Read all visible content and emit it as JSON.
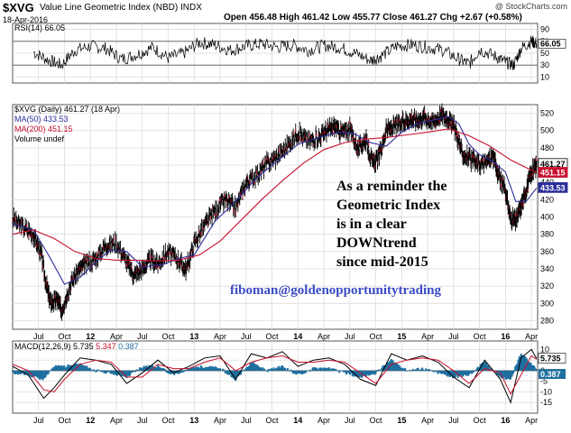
{
  "header": {
    "symbol": "$XVG",
    "name": "Value Line Geometric Index (NBD)",
    "exchange": "INDX",
    "date": "18-Apr-2016",
    "open_label": "Open",
    "open": "456.48",
    "high_label": "High",
    "high": "461.42",
    "low_label": "Low",
    "low": "455.77",
    "close_label": "Close",
    "close": "461.27",
    "chg_label": "Chg",
    "chg": "+2.67 (+0.58%)",
    "watermark": "@ StockCharts.com"
  },
  "colors": {
    "price": "#000000",
    "ma50": "#2b2d9a",
    "ma200": "#c8102e",
    "macd": "#000000",
    "signal": "#c8102e",
    "histogram": "#1f6f9e",
    "email": "#3a4bc6"
  },
  "annotation": {
    "lines": [
      "As a reminder the",
      "Geometric Index",
      "is in a clear",
      "DOWNtrend",
      "since mid-2015"
    ],
    "email": "fiboman@goldenopportunitytrading"
  },
  "chart_data": [
    {
      "type": "line",
      "panel": "rsi",
      "legend": "RSI(14) 66.05",
      "ylim": [
        0,
        100
      ],
      "yticks": [
        10,
        30,
        50,
        70,
        90
      ],
      "reference_lines": [
        30,
        70
      ],
      "last_value_label": "66.05",
      "x": [
        2011.45,
        2011.6,
        2011.72,
        2011.85,
        2012.0,
        2012.15,
        2012.3,
        2012.45,
        2012.6,
        2012.75,
        2012.9,
        2013.05,
        2013.2,
        2013.35,
        2013.5,
        2013.65,
        2013.8,
        2013.95,
        2014.1,
        2014.25,
        2014.4,
        2014.55,
        2014.7,
        2014.8,
        2014.95,
        2015.1,
        2015.25,
        2015.4,
        2015.55,
        2015.65,
        2015.75,
        2015.9,
        2016.0,
        2016.08,
        2016.15,
        2016.25,
        2016.3
      ],
      "values": [
        52,
        38,
        30,
        55,
        62,
        58,
        40,
        48,
        60,
        42,
        50,
        68,
        64,
        55,
        62,
        66,
        60,
        64,
        55,
        63,
        60,
        50,
        38,
        45,
        62,
        64,
        60,
        55,
        40,
        32,
        56,
        45,
        35,
        30,
        58,
        70,
        66
      ]
    },
    {
      "type": "line",
      "panel": "price",
      "legend": [
        "$XVG (Daily) 461.27 (18 Apr)",
        "MA(50) 433.53",
        "MA(200) 451.15",
        "Volume undef"
      ],
      "ylim": [
        270,
        530
      ],
      "yticks": [
        280,
        300,
        320,
        340,
        360,
        380,
        400,
        420,
        440,
        460,
        480,
        500,
        520
      ],
      "last_value_labels": [
        "461.27",
        "451.15",
        "433.53"
      ],
      "series": [
        {
          "name": "$XVG",
          "x": [
            2011.25,
            2011.35,
            2011.45,
            2011.52,
            2011.58,
            2011.62,
            2011.68,
            2011.72,
            2011.8,
            2011.88,
            2011.95,
            2012.05,
            2012.15,
            2012.25,
            2012.35,
            2012.42,
            2012.5,
            2012.58,
            2012.65,
            2012.75,
            2012.85,
            2012.92,
            2013.0,
            2013.1,
            2013.2,
            2013.3,
            2013.4,
            2013.5,
            2013.6,
            2013.7,
            2013.8,
            2013.9,
            2014.0,
            2014.1,
            2014.2,
            2014.28,
            2014.35,
            2014.42,
            2014.5,
            2014.58,
            2014.65,
            2014.72,
            2014.78,
            2014.85,
            2014.92,
            2015.0,
            2015.08,
            2015.15,
            2015.22,
            2015.3,
            2015.38,
            2015.45,
            2015.52,
            2015.58,
            2015.65,
            2015.72,
            2015.8,
            2015.88,
            2015.93,
            2016.0,
            2016.05,
            2016.1,
            2016.15,
            2016.2,
            2016.25,
            2016.3
          ],
          "values": [
            398,
            388,
            380,
            360,
            318,
            300,
            305,
            292,
            320,
            338,
            345,
            352,
            368,
            370,
            348,
            332,
            340,
            350,
            346,
            360,
            350,
            338,
            370,
            390,
            408,
            420,
            410,
            440,
            448,
            462,
            470,
            482,
            498,
            488,
            492,
            500,
            504,
            498,
            502,
            478,
            490,
            462,
            470,
            500,
            504,
            508,
            514,
            512,
            516,
            510,
            518,
            514,
            500,
            474,
            468,
            462,
            462,
            470,
            450,
            430,
            398,
            396,
            412,
            432,
            450,
            461.27
          ]
        },
        {
          "name": "MA(50)",
          "x": [
            2011.25,
            2011.45,
            2011.6,
            2011.75,
            2011.9,
            2012.05,
            2012.2,
            2012.35,
            2012.5,
            2012.7,
            2012.85,
            2013.0,
            2013.2,
            2013.4,
            2013.6,
            2013.8,
            2014.0,
            2014.2,
            2014.4,
            2014.55,
            2014.7,
            2014.85,
            2015.0,
            2015.15,
            2015.3,
            2015.45,
            2015.55,
            2015.65,
            2015.75,
            2015.88,
            2016.0,
            2016.1,
            2016.2,
            2016.3
          ],
          "values": [
            392,
            385,
            355,
            322,
            330,
            348,
            362,
            360,
            342,
            345,
            352,
            356,
            395,
            418,
            445,
            465,
            484,
            492,
            498,
            496,
            486,
            482,
            498,
            508,
            512,
            516,
            508,
            484,
            472,
            464,
            452,
            418,
            418,
            433.53
          ]
        },
        {
          "name": "MA(200)",
          "x": [
            2011.25,
            2011.45,
            2011.65,
            2011.85,
            2012.05,
            2012.25,
            2012.45,
            2012.65,
            2012.85,
            2013.05,
            2013.25,
            2013.45,
            2013.65,
            2013.85,
            2014.05,
            2014.25,
            2014.45,
            2014.65,
            2014.85,
            2015.05,
            2015.25,
            2015.45,
            2015.65,
            2015.85,
            2016.05,
            2016.3
          ],
          "values": [
            380,
            385,
            375,
            360,
            352,
            350,
            350,
            349,
            350,
            356,
            372,
            396,
            420,
            442,
            462,
            478,
            486,
            490,
            492,
            495,
            498,
            502,
            494,
            482,
            466,
            451.15
          ]
        }
      ]
    },
    {
      "type": "line",
      "panel": "macd",
      "legend": [
        "MACD(12,26,9)",
        "5.735",
        "5.347",
        "0.387"
      ],
      "ylim": [
        -20,
        14
      ],
      "yticks": [
        -15,
        -10,
        -5,
        0,
        5,
        10
      ],
      "last_value_labels": [
        "5.735",
        "0.387"
      ],
      "series": [
        {
          "name": "MACD(12,26,9)",
          "x": [
            2011.25,
            2011.4,
            2011.55,
            2011.65,
            2011.75,
            2011.9,
            2012.05,
            2012.2,
            2012.35,
            2012.5,
            2012.65,
            2012.8,
            2012.95,
            2013.1,
            2013.25,
            2013.4,
            2013.55,
            2013.7,
            2013.85,
            2014.0,
            2014.15,
            2014.3,
            2014.45,
            2014.6,
            2014.75,
            2014.9,
            2015.05,
            2015.2,
            2015.35,
            2015.5,
            2015.65,
            2015.8,
            2015.95,
            2016.05,
            2016.15,
            2016.25,
            2016.3
          ],
          "values": [
            2,
            -2,
            -13,
            -8,
            -2,
            6,
            5,
            3,
            -6,
            -1,
            5,
            -1,
            2,
            6,
            7,
            -4,
            8,
            6,
            9,
            2,
            5,
            6,
            3,
            -4,
            -7,
            8,
            5,
            7,
            4,
            -3,
            -8,
            5,
            -4,
            -15,
            6,
            10,
            5.735
          ]
        },
        {
          "name": "signal",
          "x": [
            2011.25,
            2011.4,
            2011.55,
            2011.65,
            2011.75,
            2011.9,
            2012.05,
            2012.2,
            2012.35,
            2012.5,
            2012.65,
            2012.8,
            2012.95,
            2013.1,
            2013.25,
            2013.4,
            2013.55,
            2013.7,
            2013.85,
            2014.0,
            2014.15,
            2014.3,
            2014.45,
            2014.6,
            2014.75,
            2014.9,
            2015.05,
            2015.2,
            2015.35,
            2015.5,
            2015.65,
            2015.8,
            2015.95,
            2016.05,
            2016.15,
            2016.25,
            2016.3
          ],
          "values": [
            3,
            0,
            -9,
            -10,
            -4,
            3,
            5,
            4,
            -3,
            -3,
            3,
            1,
            1,
            4,
            6,
            0,
            4,
            6,
            7,
            4,
            4,
            5,
            4,
            -1,
            -6,
            3,
            5,
            6,
            5,
            0,
            -6,
            1,
            -1,
            -11,
            -2,
            7,
            5.347
          ]
        },
        {
          "name": "histogram",
          "x": [
            2011.25,
            2011.4,
            2011.55,
            2011.65,
            2011.75,
            2011.9,
            2012.05,
            2012.2,
            2012.35,
            2012.5,
            2012.65,
            2012.8,
            2012.95,
            2013.1,
            2013.25,
            2013.4,
            2013.55,
            2013.7,
            2013.85,
            2014.0,
            2014.15,
            2014.3,
            2014.45,
            2014.6,
            2014.75,
            2014.9,
            2015.05,
            2015.2,
            2015.35,
            2015.5,
            2015.65,
            2015.8,
            2015.95,
            2016.05,
            2016.15,
            2016.25,
            2016.3
          ],
          "values": [
            -1,
            -2,
            -4,
            2,
            2,
            3,
            0,
            -1,
            -3,
            2,
            2,
            -2,
            1,
            2,
            1,
            -4,
            4,
            0,
            2,
            -2,
            1,
            1,
            -1,
            -3,
            -1,
            5,
            0,
            1,
            -1,
            -3,
            -2,
            4,
            -3,
            -4,
            8,
            3,
            0.387
          ]
        }
      ]
    }
  ],
  "x_axis": {
    "ticks": [
      {
        "label": "Jul",
        "x": 2011.5
      },
      {
        "label": "Oct",
        "x": 2011.75
      },
      {
        "label": "12",
        "x": 2012.0
      },
      {
        "label": "Apr",
        "x": 2012.25
      },
      {
        "label": "Jul",
        "x": 2012.5
      },
      {
        "label": "Oct",
        "x": 2012.75
      },
      {
        "label": "13",
        "x": 2013.0
      },
      {
        "label": "Apr",
        "x": 2013.25
      },
      {
        "label": "Jul",
        "x": 2013.5
      },
      {
        "label": "Oct",
        "x": 2013.75
      },
      {
        "label": "14",
        "x": 2014.0
      },
      {
        "label": "Apr",
        "x": 2014.25
      },
      {
        "label": "Jul",
        "x": 2014.5
      },
      {
        "label": "Oct",
        "x": 2014.75
      },
      {
        "label": "15",
        "x": 2015.0
      },
      {
        "label": "Apr",
        "x": 2015.25
      },
      {
        "label": "Jul",
        "x": 2015.5
      },
      {
        "label": "Oct",
        "x": 2015.75
      },
      {
        "label": "16",
        "x": 2016.0
      },
      {
        "label": "Apr",
        "x": 2016.25
      }
    ],
    "range": [
      2011.25,
      2016.31
    ]
  }
}
